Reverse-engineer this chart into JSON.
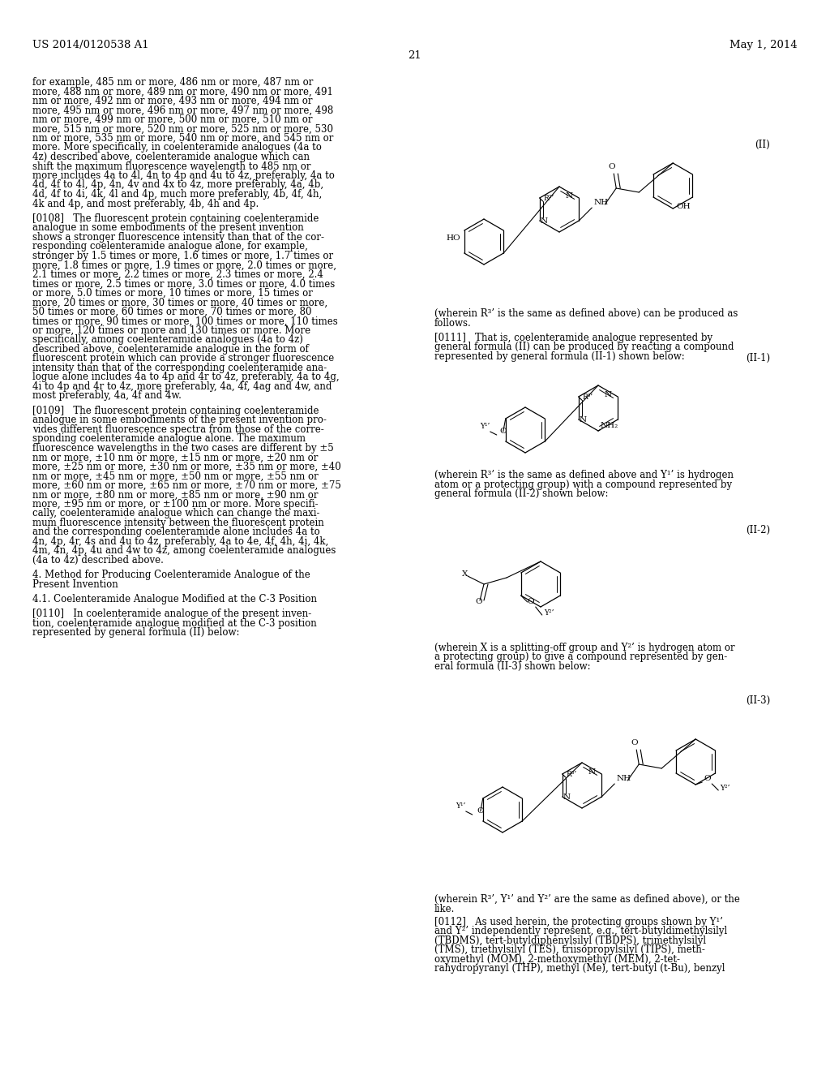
{
  "header_left": "US 2014/0120538 A1",
  "header_right": "May 1, 2014",
  "page_number": "21",
  "bg": "#ffffff",
  "tc": "#000000",
  "fs": 8.5,
  "fs_hdr": 9.5,
  "left_col": [
    "for example, 485 nm or more, 486 nm or more, 487 nm or",
    "more, 488 nm or more, 489 nm or more, 490 nm or more, 491",
    "nm or more, 492 nm or more, 493 nm or more, 494 nm or",
    "more, 495 nm or more, 496 nm or more, 497 nm or more, 498",
    "nm or more, 499 nm or more, 500 nm or more, 510 nm or",
    "more, 515 nm or more, 520 nm or more, 525 nm or more, 530",
    "nm or more, 535 nm or more, 540 nm or more, and 545 nm or",
    "more. More specifically, in coelenteramide analogues (4a to",
    "4z) described above, coelenteramide analogue which can",
    "shift the maximum fluorescence wavelength to 485 nm or",
    "more includes 4a to 4l, 4n to 4p and 4u to 4z, preferably, 4a to",
    "4d, 4f to 4l, 4p, 4n, 4v and 4x to 4z, more preferably, 4a, 4b,",
    "4d, 4f to 4i, 4k, 4l and 4p, much more preferably, 4b, 4f, 4h,",
    "4k and 4p, and most preferably, 4b, 4h and 4p.",
    "",
    "[0108]   The fluorescent protein containing coelenteramide",
    "analogue in some embodiments of the present invention",
    "shows a stronger fluorescence intensity than that of the cor-",
    "responding coelenteramide analogue alone, for example,",
    "stronger by 1.5 times or more, 1.6 times or more, 1.7 times or",
    "more, 1.8 times or more, 1.9 times or more, 2.0 times or more,",
    "2.1 times or more, 2.2 times or more, 2.3 times or more, 2.4",
    "times or more, 2.5 times or more, 3.0 times or more, 4.0 times",
    "or more, 5.0 times or more, 10 times or more, 15 times or",
    "more, 20 times or more, 30 times or more, 40 times or more,",
    "50 times or more, 60 times or more, 70 times or more, 80",
    "times or more, 90 times or more, 100 times or more, 110 times",
    "or more, 120 times or more and 130 times or more. More",
    "specifically, among coelenteramide analogues (4a to 4z)",
    "described above, coelenteramide analogue in the form of",
    "fluorescent protein which can provide a stronger fluorescence",
    "intensity than that of the corresponding coelenteramide ana-",
    "logue alone includes 4a to 4p and 4r to 4z, preferably, 4a to 4g,",
    "4i to 4p and 4r to 4z, more preferably, 4a, 4f, 4ag and 4w, and",
    "most preferably, 4a, 4f and 4w.",
    "",
    "[0109]   The fluorescent protein containing coelenteramide",
    "analogue in some embodiments of the present invention pro-",
    "vides different fluorescence spectra from those of the corre-",
    "sponding coelenteramide analogue alone. The maximum",
    "fluorescence wavelengths in the two cases are different by ±5",
    "nm or more, ±10 nm or more, ±15 nm or more, ±20 nm or",
    "more, ±25 nm or more, ±30 nm or more, ±35 nm or more, ±40",
    "nm or more, ±45 nm or more, ±50 nm or more, ±55 nm or",
    "more, ±60 nm or more, ±65 nm or more, ±70 nm or more, ±75",
    "nm or more, ±80 nm or more, ±85 nm or more, ±90 nm or",
    "more, ±95 nm or more, or ±100 nm or more. More specifi-",
    "cally, coelenteramide analogue which can change the maxi-",
    "mum fluorescence intensity between the fluorescent protein",
    "and the corresponding coelenteramide alone includes 4a to",
    "4n, 4p, 4r, 4s and 4u to 4z, preferably, 4a to 4e, 4f, 4h, 4i, 4k,",
    "4m, 4n, 4p, 4u and 4w to 4z, among coelenteramide analogues",
    "(4a to 4z) described above.",
    "",
    "4. Method for Producing Coelenteramide Analogue of the",
    "Present Invention",
    "",
    "4.1. Coelenteramide Analogue Modified at the C-3 Position",
    "",
    "[0110]   In coelenteramide analogue of the present inven-",
    "tion, coelenteramide analogue modified at the C-3 position",
    "represented by general formula (II) below:"
  ],
  "right_col_top": [
    "(wherein R³’ is the same as defined above) can be produced as",
    "follows.",
    "",
    "[0111]   That is, coelenteramide analogue represented by",
    "general formula (II) can be produced by reacting a compound",
    "represented by general formula (II-1) shown below:"
  ],
  "right_col_mid": [
    "(wherein R³’ is the same as defined above and Y¹’ is hydrogen",
    "atom or a protecting group) with a compound represented by",
    "general formula (II-2) shown below:"
  ],
  "right_col_bot1": [
    "(wherein X is a splitting-off group and Y²’ is hydrogen atom or",
    "a protecting group) to give a compound represented by gen-",
    "eral formula (II-3) shown below:"
  ],
  "right_col_bot2": [
    "(wherein R³’, Y¹’ and Y²’ are the same as defined above), or the",
    "like."
  ],
  "right_col_bot3": [
    "[0112]   As used herein, the protecting groups shown by Y¹’",
    "and Y²’ independently represent, e.g., tert-butyldimethylsilyl",
    "(TBDMS), tert-butyldiphenylsilyl (TBDPS), trimethylsilyl",
    "(TMS), triethylsilyl (TES), triisopropylsilyl (TIPS), meth-",
    "oxymethyl (MOM), 2-methoxymethyl (MEM), 2-tet-",
    "rahydropyranyl (THP), methyl (Me), tert-butyl (t-Bu), benzyl"
  ]
}
